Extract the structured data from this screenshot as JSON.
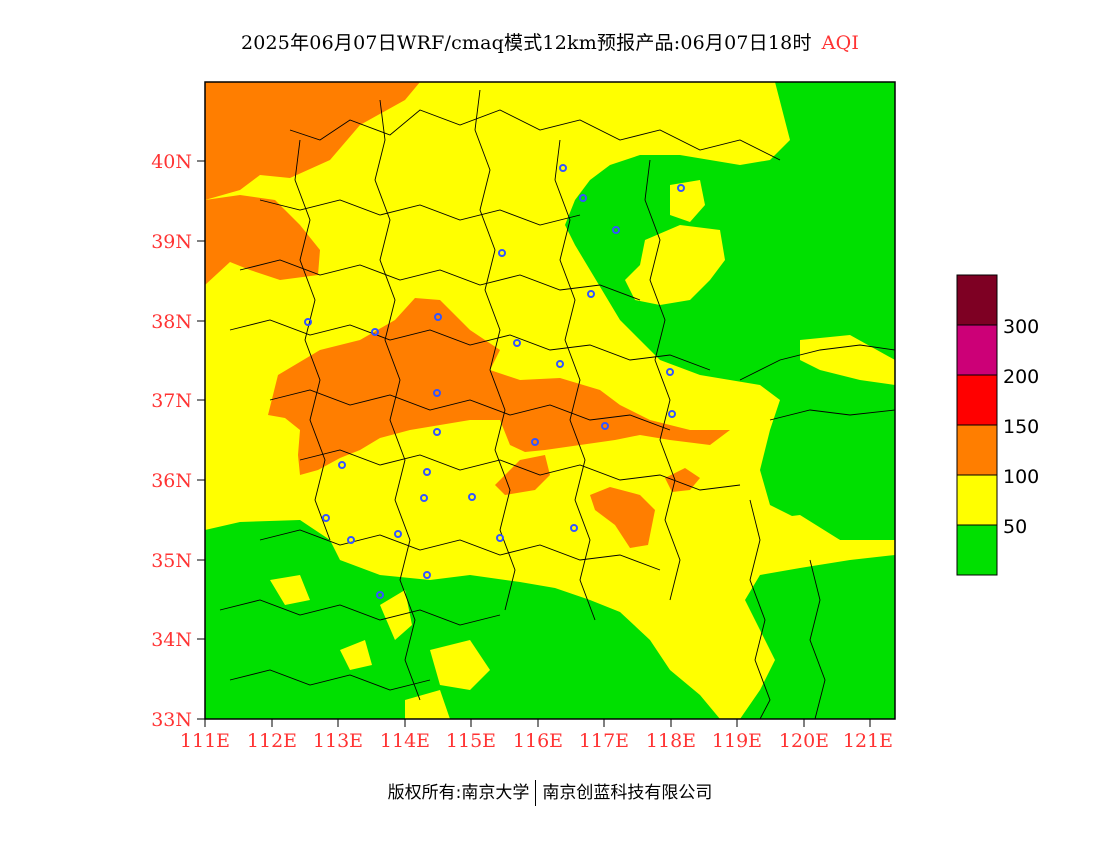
{
  "title": {
    "main": "2025年06月07日WRF/cmaq模式12km预报产品:06月07日18时",
    "variable": "AQI"
  },
  "map": {
    "lon_ticks": [
      "111E",
      "112E",
      "113E",
      "114E",
      "115E",
      "116E",
      "117E",
      "118E",
      "119E",
      "120E",
      "121E"
    ],
    "lat_ticks": [
      "33N",
      "34N",
      "35N",
      "36N",
      "37N",
      "38N",
      "39N",
      "40N"
    ],
    "lon_range": [
      111,
      121.4
    ],
    "lat_range": [
      33,
      41
    ],
    "tick_color": "#ff3333"
  },
  "legend": {
    "labels": [
      "50",
      "100",
      "150",
      "200",
      "300"
    ],
    "colors": [
      "#00e000",
      "#ffff00",
      "#ff7e00",
      "#ff0000",
      "#cc0077",
      "#7e0023"
    ]
  },
  "footer": {
    "left": "版权所有:南京大学",
    "right": "南京创蓝科技有限公司"
  }
}
